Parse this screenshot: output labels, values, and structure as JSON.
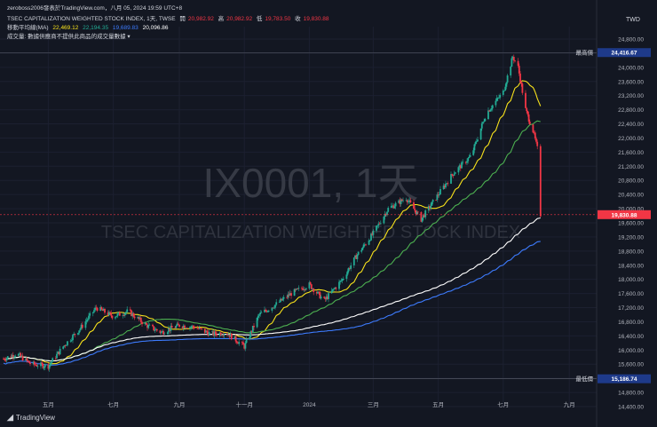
{
  "header": {
    "byline": "zeroboss2006發表於TradingView.com，八月 05, 2024 19:59 UTC+8",
    "symbol_line": "TSEC CAPITALIZATION WEIGHTED STOCK INDEX, 1天, TWSE",
    "open_label": "開",
    "open": "20,982.92",
    "high_label": "高",
    "high": "20,982.92",
    "low_label": "低",
    "low": "19,783.50",
    "close_label": "收",
    "close": "19,830.88",
    "ma_label": "移動平均線(MA)",
    "ma_values": [
      "22,469.12",
      "22,194.35",
      "19,689.83",
      "20,096.86"
    ],
    "volume_note": "成交量: 數據供應商不提供此商品的成交量數據 ▾"
  },
  "watermark": {
    "ticker": "IX0001, 1天",
    "name": "TSEC CAPITALIZATION WEIGHTED STOCK INDEX"
  },
  "brand": {
    "name": "TradingView"
  },
  "colors": {
    "up": "#22ab94",
    "down": "#f23645",
    "ma_short": "#f7e11b",
    "ma_mid": "#4caf50",
    "ma_long_white": "#ffffff",
    "ma_long_blue": "#3d7bfd",
    "background": "#131722"
  },
  "chart_data": {
    "type": "line",
    "currency": "TWD",
    "y_axis_ticks": [
      "14,400.00",
      "14,800.00",
      "15,200.00",
      "15,600.00",
      "16,000.00",
      "16,400.00",
      "16,800.00",
      "17,200.00",
      "17,600.00",
      "18,000.00",
      "18,400.00",
      "18,800.00",
      "19,200.00",
      "19,600.00",
      "20,000.00",
      "20,400.00",
      "20,800.00",
      "21,200.00",
      "21,600.00",
      "22,000.00",
      "22,400.00",
      "22,800.00",
      "23,200.00",
      "23,600.00",
      "24,000.00",
      "24,400.00",
      "24,800.00"
    ],
    "ylim": [
      14400,
      24900
    ],
    "x_axis_ticks": [
      "五月",
      "七月",
      "九月",
      "十一月",
      "2024",
      "三月",
      "五月",
      "七月",
      "九月"
    ],
    "price_markers": [
      {
        "label": "最高價",
        "value": "24,416.67",
        "y": 24416.67
      },
      {
        "label": "",
        "value": "19,830.88",
        "y": 19830.88
      },
      {
        "label": "最低價",
        "value": "15,186.74",
        "y": 15186.74
      }
    ],
    "close_series": [
      [
        "2023-03-20",
        15750
      ],
      [
        "2023-04-01",
        15900
      ],
      [
        "2023-04-15",
        15600
      ],
      [
        "2023-05-01",
        15550
      ],
      [
        "2023-05-15",
        16100
      ],
      [
        "2023-06-01",
        16650
      ],
      [
        "2023-06-15",
        17200
      ],
      [
        "2023-07-01",
        16950
      ],
      [
        "2023-07-15",
        17100
      ],
      [
        "2023-08-01",
        16700
      ],
      [
        "2023-08-15",
        16500
      ],
      [
        "2023-09-01",
        16700
      ],
      [
        "2023-09-15",
        16650
      ],
      [
        "2023-10-01",
        16450
      ],
      [
        "2023-10-15",
        16500
      ],
      [
        "2023-11-01",
        16100
      ],
      [
        "2023-11-15",
        17000
      ],
      [
        "2023-12-01",
        17300
      ],
      [
        "2023-12-15",
        17600
      ],
      [
        "2024-01-01",
        17850
      ],
      [
        "2024-01-15",
        17400
      ],
      [
        "2024-02-01",
        18000
      ],
      [
        "2024-02-15",
        18700
      ],
      [
        "2024-03-01",
        19300
      ],
      [
        "2024-03-15",
        20000
      ],
      [
        "2024-04-01",
        20300
      ],
      [
        "2024-04-15",
        19700
      ],
      [
        "2024-05-01",
        20400
      ],
      [
        "2024-05-15",
        21000
      ],
      [
        "2024-06-01",
        21500
      ],
      [
        "2024-06-15",
        22700
      ],
      [
        "2024-07-01",
        23300
      ],
      [
        "2024-07-10",
        24300
      ],
      [
        "2024-07-15",
        24000
      ],
      [
        "2024-07-22",
        22800
      ],
      [
        "2024-07-29",
        22200
      ],
      [
        "2024-08-02",
        21700
      ],
      [
        "2024-08-05",
        19830.88
      ]
    ]
  }
}
